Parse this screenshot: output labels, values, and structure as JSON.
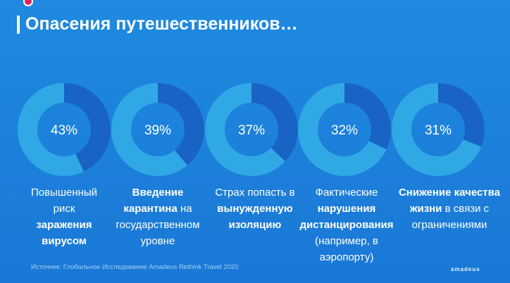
{
  "title": "Опасения путешественников…",
  "source": "Источник: Глобальное Исследование  Amadeus Rethink Travel 2020",
  "logo": "amadeus",
  "colors": {
    "ring_bg": "#30a8e6",
    "ring_fg": "#1863c4",
    "background": "#1f8ae0"
  },
  "chart_data": {
    "type": "pie",
    "values": [
      43,
      39,
      37,
      32,
      31
    ],
    "labels": [
      "43%",
      "39%",
      "37%",
      "32%",
      "31%"
    ],
    "captions": [
      [
        {
          "t": "Повышенный",
          "b": false
        },
        {
          "br": true
        },
        {
          "t": "риск",
          "b": false
        },
        {
          "br": true
        },
        {
          "t": "заражения",
          "b": true
        },
        {
          "br": true
        },
        {
          "t": "вирусом",
          "b": true
        }
      ],
      [
        {
          "t": "Введение",
          "b": true
        },
        {
          "br": true
        },
        {
          "t": "карантина",
          "b": true
        },
        {
          "t": " на",
          "b": false
        },
        {
          "br": true
        },
        {
          "t": "государственном",
          "b": false
        },
        {
          "br": true
        },
        {
          "t": "уровне",
          "b": false
        }
      ],
      [
        {
          "t": "Страх попасть в",
          "b": false
        },
        {
          "br": true
        },
        {
          "t": "вынужденную",
          "b": true
        },
        {
          "br": true
        },
        {
          "t": "изоляцию",
          "b": true
        }
      ],
      [
        {
          "t": "Фактические",
          "b": false
        },
        {
          "br": true
        },
        {
          "t": "нарушения",
          "b": true
        },
        {
          "br": true
        },
        {
          "t": "дистанцирования",
          "b": true
        },
        {
          "br": true
        },
        {
          "t": "(например, в",
          "b": false
        },
        {
          "br": true
        },
        {
          "t": "аэропорту)",
          "b": false
        }
      ],
      [
        {
          "t": "Снижение качества",
          "b": true
        },
        {
          "br": true
        },
        {
          "t": "жизни",
          "b": true
        },
        {
          "t": " в связи с",
          "b": false
        },
        {
          "br": true
        },
        {
          "t": "ограничениями",
          "b": false
        }
      ]
    ]
  }
}
